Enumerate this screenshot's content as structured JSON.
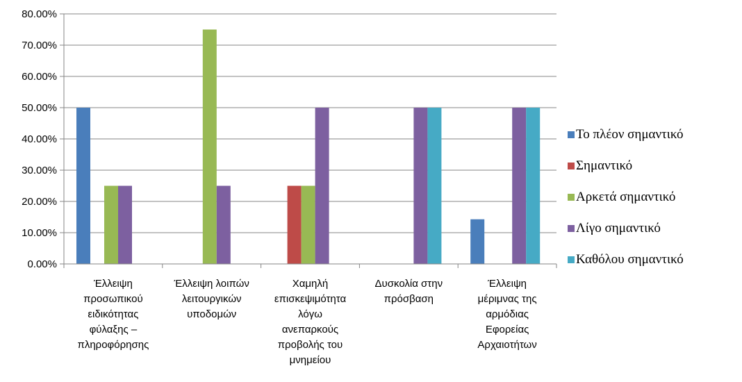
{
  "chart_data": {
    "type": "bar",
    "categories": [
      [
        "Έλλειψη",
        "προσωπικού",
        "ειδικότητας",
        "φύλαξης –",
        "πληροφόρησης"
      ],
      [
        "Έλλειψη λοιπών",
        "λειτουργικών",
        "υποδομών"
      ],
      [
        "Χαμηλή",
        "επισκεψιμότητα",
        "λόγω",
        "ανεπαρκούς",
        "προβολής του",
        "μνημείου"
      ],
      [
        "Δυσκολία στην",
        "πρόσβαση"
      ],
      [
        "Έλλειψη",
        "μέριμνας της",
        "αρμόδιας",
        "Εφορείας",
        "Αρχαιοτήτων"
      ]
    ],
    "series": [
      {
        "name": "Το πλέον σημαντικό",
        "color": "#4a7ebb",
        "values": [
          50,
          0,
          0,
          0,
          14.29
        ]
      },
      {
        "name": "Σημαντικό",
        "color": "#be4b48",
        "values": [
          0,
          0,
          25,
          0,
          0
        ]
      },
      {
        "name": "Αρκετά σημαντικό",
        "color": "#98b954",
        "values": [
          25,
          75,
          25,
          0,
          0
        ]
      },
      {
        "name": "Λίγο σημαντικό",
        "color": "#7d60a0",
        "values": [
          25,
          25,
          50,
          50,
          50
        ]
      },
      {
        "name": "Καθόλου σημαντικό",
        "color": "#46aac5",
        "values": [
          0,
          0,
          0,
          50,
          50
        ]
      }
    ],
    "ylim": [
      0,
      80
    ],
    "yticks": [
      "0.00%",
      "10.00%",
      "20.00%",
      "30.00%",
      "40.00%",
      "50.00%",
      "60.00%",
      "70.00%",
      "80.00%"
    ],
    "grid": true,
    "legend_position": "right",
    "title": "",
    "xlabel": "",
    "ylabel": ""
  }
}
